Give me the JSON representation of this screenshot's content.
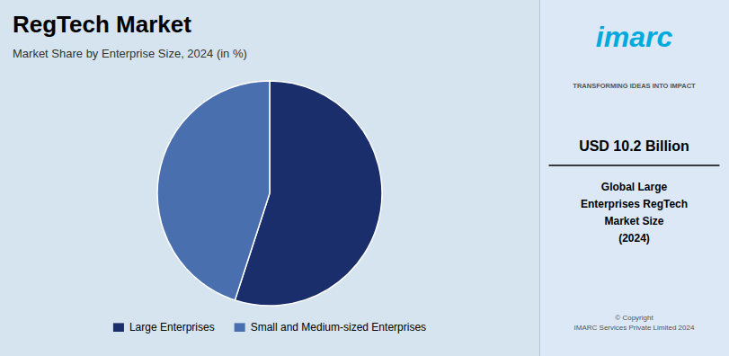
{
  "chart_data": {
    "type": "pie",
    "title": "RegTech Market",
    "subtitle": "Market Share by Enterprise Size, 2024 (in %)",
    "categories": [
      "Large Enterprises",
      "Small and Medium-sized Enterprises"
    ],
    "values": [
      55,
      45
    ],
    "colors": [
      "#1a2e6c",
      "#4a6faf"
    ],
    "legend": "bottom",
    "annotations": [
      "imarc",
      "TRANSFORMING IDEAS INTO IMPACT",
      "USD 10.2 Billion",
      "Global Large\nEnterprises RegTech\nMarket Size\n(2024)",
      "© Copyright\nIMARC Services Private Limited 2024"
    ]
  }
}
